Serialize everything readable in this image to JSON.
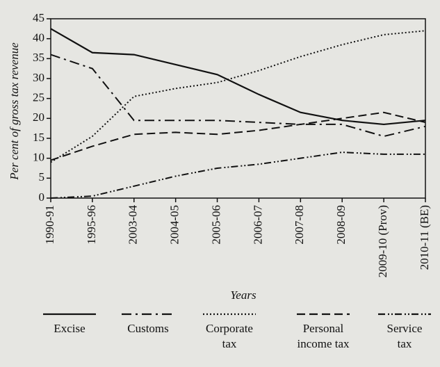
{
  "chart_data": {
    "type": "line",
    "y_label": "Per cent of gross tax revenue",
    "x_label": "Years",
    "categories": [
      "1990-91",
      "1995-96",
      "2003-04",
      "2004-05",
      "2005-06",
      "2006-07",
      "2007-08",
      "2008-09",
      "2009-10 (Prov)",
      "2010-11 (BE)"
    ],
    "series": [
      {
        "name": "Excise",
        "color": "#111111",
        "values": [
          42.5,
          36.5,
          36,
          33.5,
          31,
          26,
          21.5,
          19.5,
          18.5,
          19.5
        ]
      },
      {
        "name": "Customs",
        "color": "#111111",
        "values": [
          36,
          32.5,
          19.5,
          19.5,
          19.5,
          19,
          18.5,
          18.5,
          15.5,
          18
        ]
      },
      {
        "name": "Corporate tax",
        "color": "#111111",
        "values": [
          9,
          15.5,
          25.5,
          27.5,
          29,
          32,
          35.5,
          38.5,
          41,
          42
        ]
      },
      {
        "name": "Personal income tax",
        "color": "#111111",
        "values": [
          9.5,
          13,
          16,
          16.5,
          16,
          17,
          18.5,
          20,
          21.5,
          19
        ]
      },
      {
        "name": "Service tax",
        "color": "#111111",
        "values": [
          0,
          0.5,
          3,
          5.5,
          7.5,
          8.5,
          10,
          11.5,
          11,
          11
        ]
      }
    ],
    "ylim": [
      0,
      45
    ],
    "yticks": [
      0,
      5,
      10,
      15,
      20,
      25,
      30,
      35,
      40,
      45
    ],
    "grid": false
  }
}
